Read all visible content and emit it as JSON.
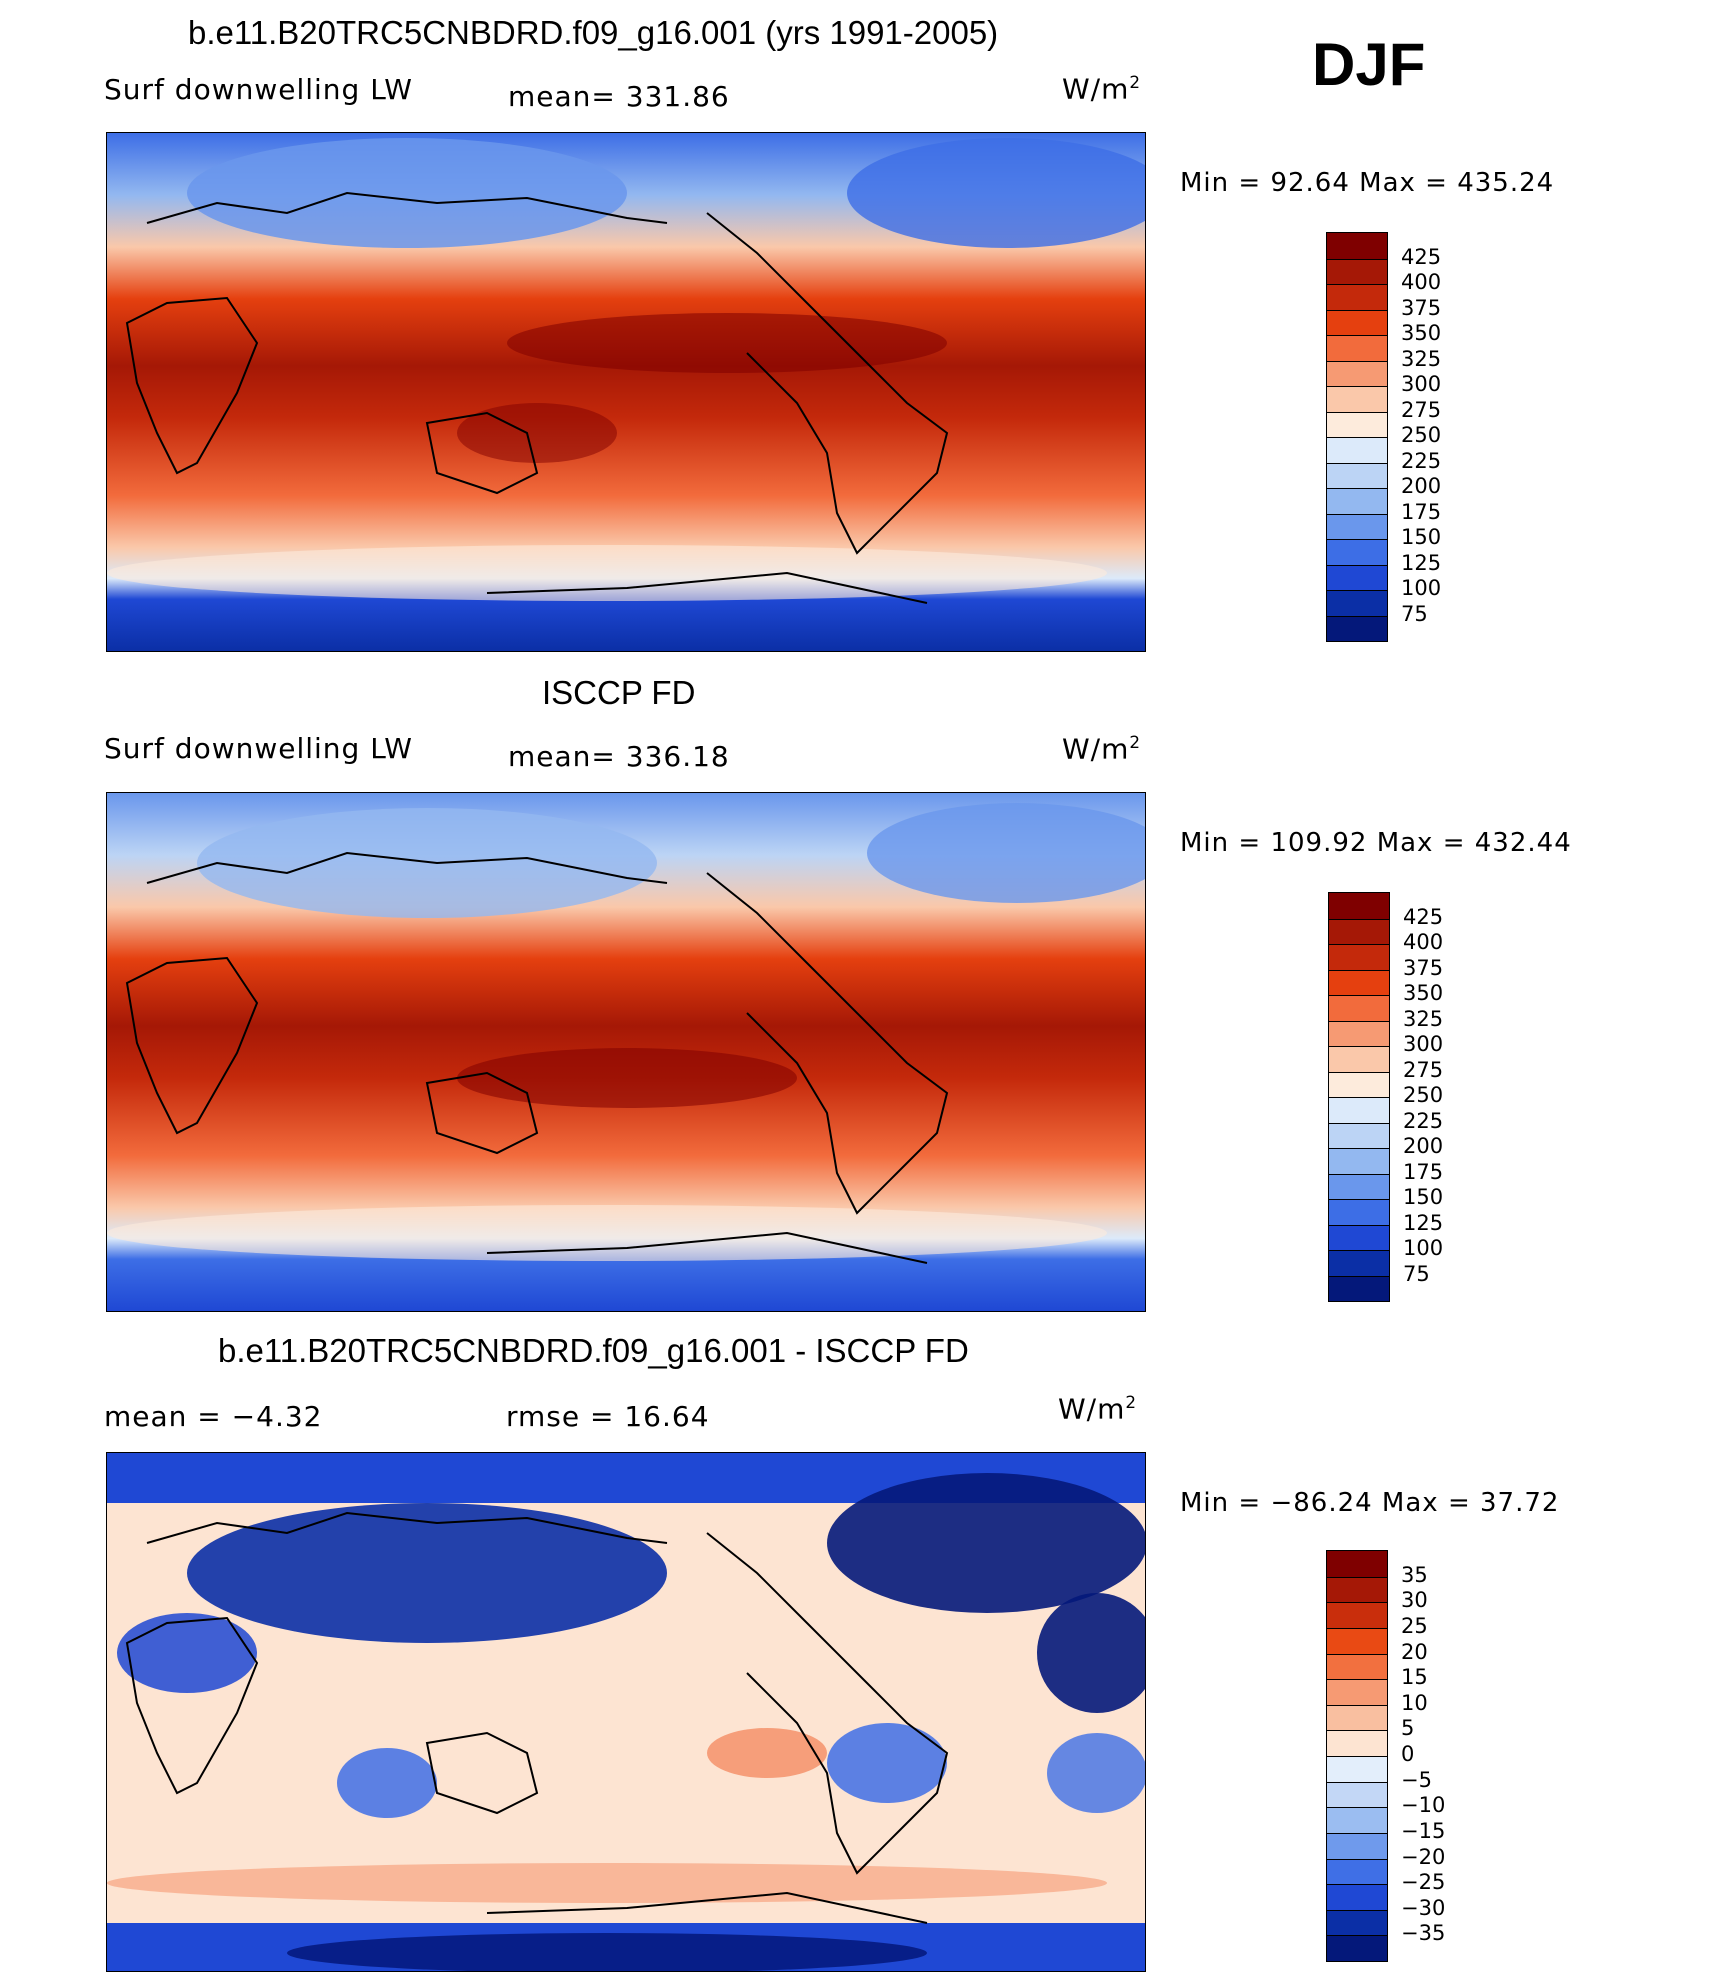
{
  "season": "DJF",
  "units": "W/m",
  "units_sup": "2",
  "chart_data": [
    {
      "type": "heatmap",
      "title": "b.e11.B20TRC5CNBDRD.f09_g16.001 (yrs 1991-2005)",
      "left_label": "Surf downwelling LW",
      "stat_label": "mean= 331.86",
      "mean": 331.86,
      "min_label": "Min =  92.64 Max = 435.24",
      "min": 92.64,
      "max": 435.24,
      "colorbar": {
        "levels": [
          "425",
          "400",
          "375",
          "350",
          "325",
          "300",
          "275",
          "250",
          "225",
          "200",
          "175",
          "150",
          "125",
          "100",
          "75"
        ],
        "colors": [
          "#7f0000",
          "#a51806",
          "#c4290b",
          "#e5400f",
          "#f26b3c",
          "#f69a73",
          "#fac8aa",
          "#fdebdc",
          "#dceafa",
          "#bcd4f5",
          "#93b8f0",
          "#6a97ec",
          "#3d6ee6",
          "#1f48d4",
          "#0b2fa6",
          "#04187a"
        ]
      }
    },
    {
      "type": "heatmap",
      "title": "ISCCP FD",
      "left_label": "Surf downwelling LW",
      "stat_label": "mean= 336.18",
      "mean": 336.18,
      "min_label": "Min = 109.92 Max = 432.44",
      "min": 109.92,
      "max": 432.44,
      "colorbar": {
        "levels": [
          "425",
          "400",
          "375",
          "350",
          "325",
          "300",
          "275",
          "250",
          "225",
          "200",
          "175",
          "150",
          "125",
          "100",
          "75"
        ],
        "colors": [
          "#7f0000",
          "#a51806",
          "#c4290b",
          "#e5400f",
          "#f26b3c",
          "#f69a73",
          "#fac8aa",
          "#fdebdc",
          "#dceafa",
          "#bcd4f5",
          "#93b8f0",
          "#6a97ec",
          "#3d6ee6",
          "#1f48d4",
          "#0b2fa6",
          "#04187a"
        ]
      }
    },
    {
      "type": "heatmap",
      "title": "b.e11.B20TRC5CNBDRD.f09_g16.001 - ISCCP FD",
      "left_label": "mean =   −4.32",
      "mean": -4.32,
      "stat_label": "rmse =   16.64",
      "rmse": 16.64,
      "min_label": "Min = −86.24 Max =  37.72",
      "min": -86.24,
      "max": 37.72,
      "colorbar": {
        "levels": [
          "35",
          "30",
          "25",
          "20",
          "15",
          "10",
          "5",
          "0",
          "−5",
          "−10",
          "−15",
          "−20",
          "−25",
          "−30",
          "−35"
        ],
        "colors": [
          "#7f0000",
          "#a51806",
          "#c92e0c",
          "#e94a14",
          "#f2703f",
          "#f69a73",
          "#f9bfa0",
          "#fde4d2",
          "#e3eefb",
          "#c3d7f6",
          "#9bbdf1",
          "#6f9aec",
          "#3f6fe6",
          "#1f48d4",
          "#0b2fa6",
          "#04187a"
        ]
      }
    }
  ]
}
